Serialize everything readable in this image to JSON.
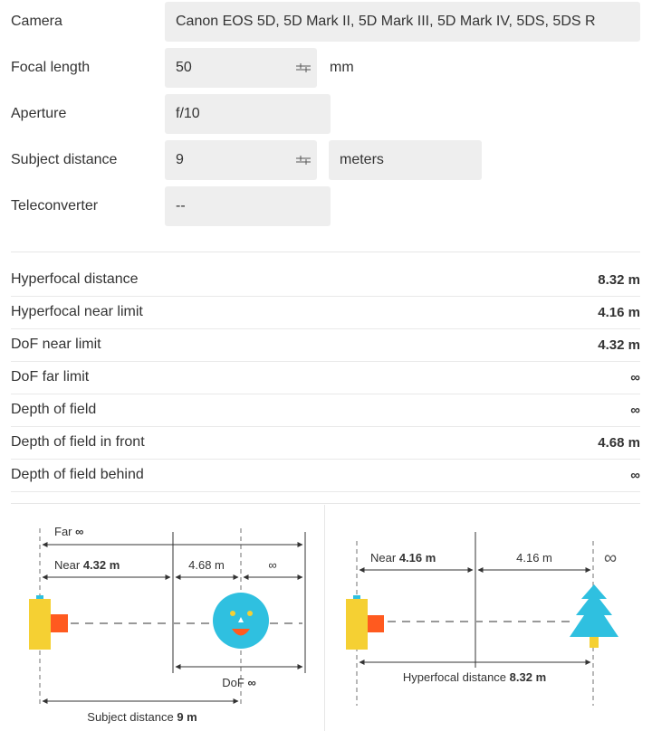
{
  "form": {
    "camera_label": "Camera",
    "camera_value": "Canon EOS 5D, 5D Mark II, 5D Mark III, 5D Mark IV, 5DS, 5DS R",
    "focal_label": "Focal length",
    "focal_value": "50",
    "focal_unit": "mm",
    "aperture_label": "Aperture",
    "aperture_value": "f/10",
    "distance_label": "Subject distance",
    "distance_value": "9",
    "distance_unit": "meters",
    "tele_label": "Teleconverter",
    "tele_value": "--"
  },
  "results": [
    {
      "label": "Hyperfocal distance",
      "value": "8.32 m"
    },
    {
      "label": "Hyperfocal near limit",
      "value": "4.16 m"
    },
    {
      "label": "DoF near limit",
      "value": "4.32 m"
    },
    {
      "label": "DoF far limit",
      "value": "∞"
    },
    {
      "label": "Depth of field",
      "value": "∞"
    },
    {
      "label": "Depth of field in front",
      "value": "4.68 m"
    },
    {
      "label": "Depth of field behind",
      "value": "∞"
    }
  ],
  "diagram_dof": {
    "far_label": "Far",
    "far_value": "∞",
    "near_label": "Near",
    "near_value": "4.32 m",
    "front_value": "4.68 m",
    "behind_value": "∞",
    "dof_label": "DoF",
    "dof_value": "∞",
    "subject_label": "Subject distance",
    "subject_value": "9 m"
  },
  "diagram_hyper": {
    "near_label": "Near",
    "near_value": "4.16 m",
    "span_value": "4.16 m",
    "inf_symbol": "∞",
    "hyper_label": "Hyperfocal distance",
    "hyper_value": "8.32 m"
  },
  "colors": {
    "camera_body": "#f5d033",
    "lens": "#ff5a1f",
    "face": "#2fc0e0",
    "tree": "#2fc0e0",
    "trunk": "#f5d033"
  }
}
